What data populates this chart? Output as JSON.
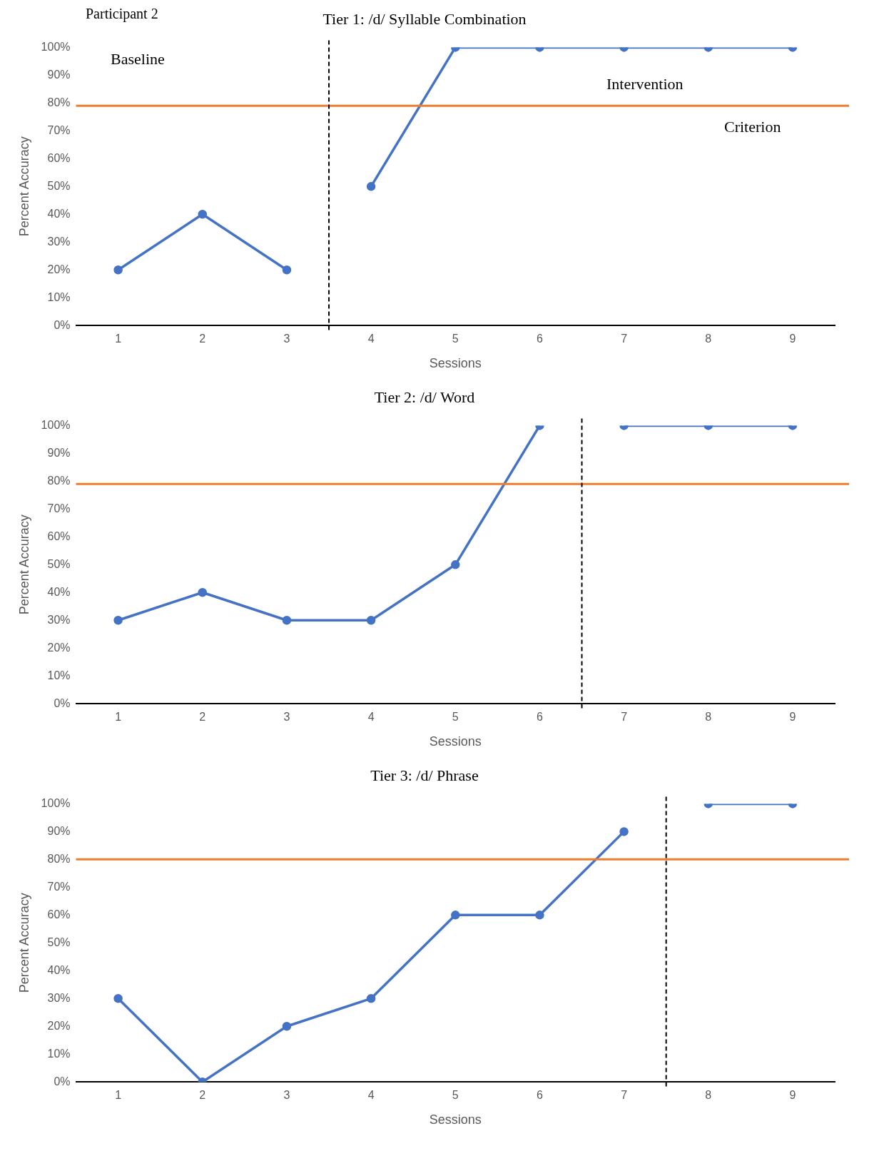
{
  "chart_data": [
    {
      "type": "line",
      "title": "Tier 1: /d/ Syllable Combination",
      "xlabel": "Sessions",
      "ylabel": "Percent Accuracy",
      "x": [
        1,
        2,
        3,
        4,
        5,
        6,
        7,
        8,
        9
      ],
      "xlim": [
        0.5,
        9.5
      ],
      "xticks": [
        1,
        2,
        3,
        4,
        5,
        6,
        7,
        8,
        9
      ],
      "ylim": [
        0,
        100
      ],
      "yticks": [
        {
          "value": 0,
          "label": "0%"
        },
        {
          "value": 10,
          "label": "10%"
        },
        {
          "value": 20,
          "label": "20%"
        },
        {
          "value": 30,
          "label": "30%"
        },
        {
          "value": 40,
          "label": "40%"
        },
        {
          "value": 50,
          "label": "50%"
        },
        {
          "value": 60,
          "label": "60%"
        },
        {
          "value": 70,
          "label": "70%"
        },
        {
          "value": 80,
          "label": "80%"
        },
        {
          "value": 90,
          "label": "90%"
        },
        {
          "value": 100,
          "label": "100%"
        }
      ],
      "grid": false,
      "legend": false,
      "marker": "circle",
      "series": [
        {
          "color": "#4472c4",
          "values": [
            20,
            40,
            20,
            null,
            null,
            null,
            null,
            null,
            null
          ]
        },
        {
          "color": "#4472c4",
          "values": [
            null,
            null,
            null,
            50,
            100,
            100,
            100,
            100,
            100
          ]
        }
      ],
      "ref_lines": [
        {
          "axis": "y",
          "value": 79,
          "color": "#ed7d31",
          "line_style": "solid"
        },
        {
          "axis": "x",
          "value": 3.5,
          "color": "#000000",
          "line_style": "dashed"
        }
      ],
      "annotations": [
        "Participant 2",
        "Baseline",
        "Intervention",
        "Criterion"
      ]
    },
    {
      "type": "line",
      "title": "Tier 2: /d/ Word",
      "xlabel": "Sessions",
      "ylabel": "Percent Accuracy",
      "x": [
        1,
        2,
        3,
        4,
        5,
        6,
        7,
        8,
        9
      ],
      "xlim": [
        0.5,
        9.5
      ],
      "xticks": [
        1,
        2,
        3,
        4,
        5,
        6,
        7,
        8,
        9
      ],
      "ylim": [
        0,
        100
      ],
      "yticks": [
        {
          "value": 0,
          "label": "0%"
        },
        {
          "value": 10,
          "label": "10%"
        },
        {
          "value": 20,
          "label": "20%"
        },
        {
          "value": 30,
          "label": "30%"
        },
        {
          "value": 40,
          "label": "40%"
        },
        {
          "value": 50,
          "label": "50%"
        },
        {
          "value": 60,
          "label": "60%"
        },
        {
          "value": 70,
          "label": "70%"
        },
        {
          "value": 80,
          "label": "80%"
        },
        {
          "value": 90,
          "label": "90%"
        },
        {
          "value": 100,
          "label": "100%"
        }
      ],
      "grid": false,
      "legend": false,
      "marker": "circle",
      "series": [
        {
          "color": "#4472c4",
          "values": [
            30,
            40,
            30,
            30,
            50,
            100,
            null,
            null,
            null
          ]
        },
        {
          "color": "#4472c4",
          "values": [
            null,
            null,
            null,
            null,
            null,
            null,
            100,
            100,
            100
          ]
        }
      ],
      "ref_lines": [
        {
          "axis": "y",
          "value": 79,
          "color": "#ed7d31",
          "line_style": "solid"
        },
        {
          "axis": "x",
          "value": 6.5,
          "color": "#000000",
          "line_style": "dashed"
        }
      ]
    },
    {
      "type": "line",
      "title": "Tier 3: /d/ Phrase",
      "xlabel": "Sessions",
      "ylabel": "Percent Accuracy",
      "x": [
        1,
        2,
        3,
        4,
        5,
        6,
        7,
        8,
        9
      ],
      "xlim": [
        0.5,
        9.5
      ],
      "xticks": [
        1,
        2,
        3,
        4,
        5,
        6,
        7,
        8,
        9
      ],
      "ylim": [
        0,
        100
      ],
      "yticks": [
        {
          "value": 0,
          "label": "0%"
        },
        {
          "value": 10,
          "label": "10%"
        },
        {
          "value": 20,
          "label": "20%"
        },
        {
          "value": 30,
          "label": "30%"
        },
        {
          "value": 40,
          "label": "40%"
        },
        {
          "value": 50,
          "label": "50%"
        },
        {
          "value": 60,
          "label": "60%"
        },
        {
          "value": 70,
          "label": "70%"
        },
        {
          "value": 80,
          "label": "80%"
        },
        {
          "value": 90,
          "label": "90%"
        },
        {
          "value": 100,
          "label": "100%"
        }
      ],
      "grid": false,
      "legend": false,
      "marker": "circle",
      "series": [
        {
          "color": "#4472c4",
          "values": [
            30,
            0,
            20,
            30,
            60,
            60,
            90,
            null,
            null
          ]
        },
        {
          "color": "#4472c4",
          "values": [
            null,
            null,
            null,
            null,
            null,
            null,
            null,
            100,
            100
          ]
        }
      ],
      "ref_lines": [
        {
          "axis": "y",
          "value": 80,
          "color": "#ed7d31",
          "line_style": "solid"
        },
        {
          "axis": "x",
          "value": 7.5,
          "color": "#000000",
          "line_style": "dashed"
        }
      ]
    }
  ]
}
